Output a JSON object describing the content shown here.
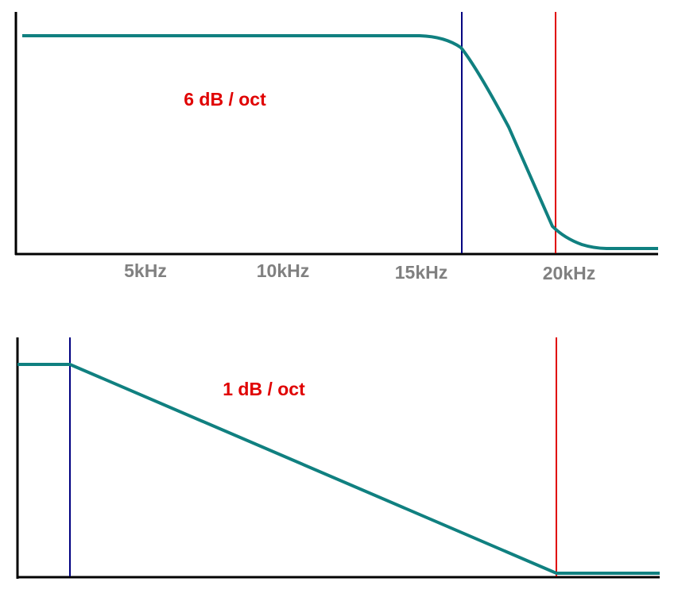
{
  "panels": [
    {
      "annotation": "6 dB / oct",
      "x_labels": [
        "5kHz",
        "10kHz",
        "15kHz",
        "20kHz"
      ]
    },
    {
      "annotation": "1 dB / oct"
    }
  ]
}
